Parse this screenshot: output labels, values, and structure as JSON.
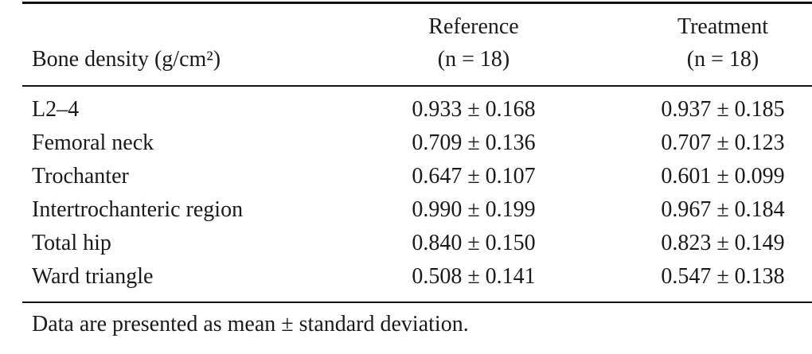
{
  "table": {
    "header": [
      "Bone density (g/cm²)",
      {
        "title": "Reference",
        "n": "(n = 18)"
      },
      {
        "title": "Treatment",
        "n": "(n = 18)"
      }
    ],
    "rows": [
      [
        "L2–4",
        "0.933 ± 0.168",
        "0.937 ± 0.185"
      ],
      [
        "Femoral neck",
        "0.709 ± 0.136",
        "0.707 ± 0.123"
      ],
      [
        "Trochanter",
        "0.647 ± 0.107",
        "0.601 ± 0.099"
      ],
      [
        "Intertrochanteric region",
        "0.990 ± 0.199",
        "0.967 ± 0.184"
      ],
      [
        "Total hip",
        "0.840 ± 0.150",
        "0.823 ± 0.149"
      ],
      [
        "Ward triangle",
        "0.508 ± 0.141",
        "0.547 ± 0.138"
      ]
    ],
    "footnote": "Data are presented as mean ± standard deviation."
  }
}
